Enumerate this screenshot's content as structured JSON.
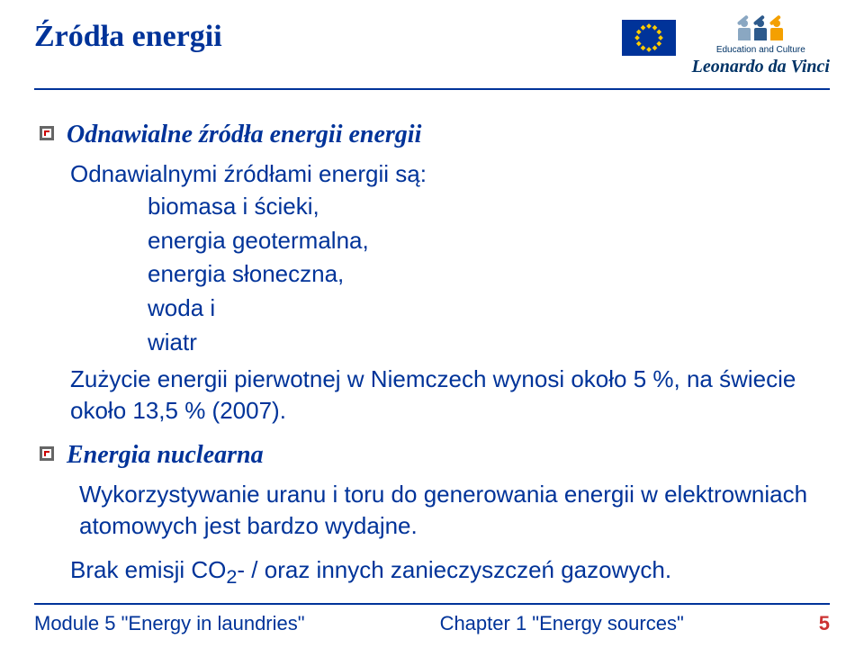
{
  "title": "Źródła energii",
  "logo": {
    "edu_text": "Education and Culture",
    "ldv_text": "Leonardo da Vinci",
    "fig_colors": [
      "#8aa7c2",
      "#2d5a8c",
      "#f4a000"
    ],
    "eu_flag_bg": "#003399",
    "star_color": "#ffcc00"
  },
  "section1": {
    "heading": "Odnawialne źródła energii energii",
    "intro": "Odnawialnymi źródłami energii są:",
    "items": [
      "biomasa i ścieki,",
      "energia geotermalna,",
      "energia słoneczna,",
      "woda i",
      "wiatr"
    ],
    "para": "Zużycie energii pierwotnej w Niemczech wynosi około 5 %, na świecie około 13,5 % (2007)."
  },
  "section2": {
    "heading": "Energia nuclearna",
    "para1": "Wykorzystywanie uranu i toru do generowania energii w elektrowniach atomowych jest bardzo wydajne.",
    "para2_a": "Brak emisji CO",
    "para2_sub": "2",
    "para2_b": "- / oraz innych zanieczyszczeń gazowych."
  },
  "footer": {
    "left": "Module  5 \"Energy in laundries\"",
    "center": "Chapter 1 \"Energy sources\"",
    "page": "5"
  },
  "colors": {
    "primary": "#003399",
    "accent": "#cc3333"
  }
}
